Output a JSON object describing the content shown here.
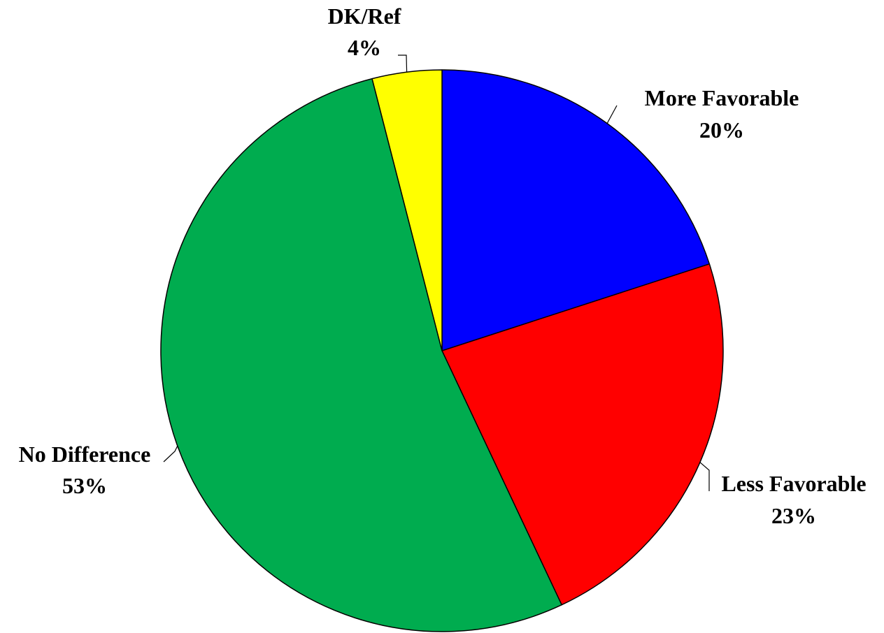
{
  "chart_data": {
    "type": "pie",
    "title": "",
    "start": "12 o'clock",
    "direction": "clockwise",
    "slices": [
      {
        "label": "More Favorable",
        "value": 20,
        "value_label": "20%",
        "color": "#0000ff"
      },
      {
        "label": "Less Favorable",
        "value": 23,
        "value_label": "23%",
        "color": "#ff0000"
      },
      {
        "label": "No Difference",
        "value": 53,
        "value_label": "53%",
        "color": "#00ac4f"
      },
      {
        "label": "DK/Ref",
        "value": 4,
        "value_label": "4%",
        "color": "#ffff00"
      }
    ],
    "legend": "none",
    "data_labels": "outside with leader lines"
  }
}
